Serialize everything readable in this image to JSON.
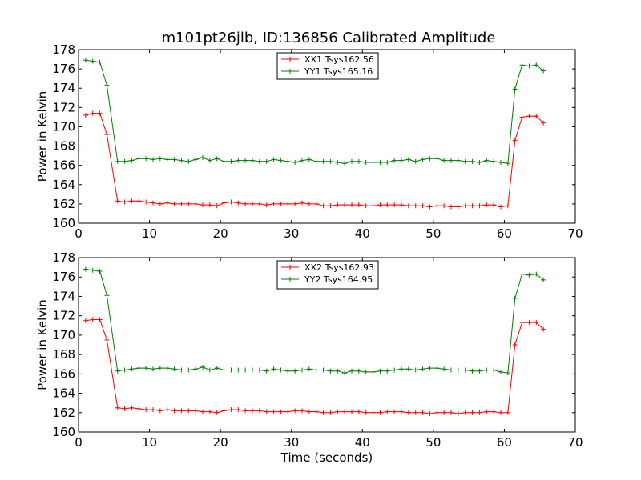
{
  "title": "m101pt26jlb, ID:136856 Calibrated Amplitude",
  "charts": [
    {
      "type": "line",
      "ylabel": "Power in Kelvin",
      "xlabel": "",
      "xlim": [
        0,
        70
      ],
      "ylim": [
        160,
        178
      ],
      "xticks": [
        0,
        10,
        20,
        30,
        40,
        50,
        60,
        70
      ],
      "yticks": [
        160,
        162,
        164,
        166,
        168,
        170,
        172,
        174,
        176,
        178
      ],
      "grid": false,
      "legend": "top-center",
      "x": [
        1.0,
        2.0,
        3.0,
        4.0,
        5.5,
        6.5,
        7.5,
        8.5,
        9.5,
        10.5,
        11.5,
        12.5,
        13.5,
        14.5,
        15.5,
        16.5,
        17.5,
        18.5,
        19.5,
        20.5,
        21.5,
        22.5,
        23.5,
        24.5,
        25.5,
        26.5,
        27.5,
        28.5,
        29.5,
        30.5,
        31.5,
        32.5,
        33.5,
        34.5,
        35.5,
        36.5,
        37.5,
        38.5,
        39.5,
        40.5,
        41.5,
        42.5,
        43.5,
        44.5,
        45.5,
        46.5,
        47.5,
        48.5,
        49.5,
        50.5,
        51.5,
        52.5,
        53.5,
        54.5,
        55.5,
        56.5,
        57.5,
        58.5,
        59.5,
        60.5,
        61.5,
        62.5,
        63.5,
        64.5,
        65.5
      ],
      "series": [
        {
          "name": "XX1 Tsys162.56",
          "color": "#ff0000",
          "values": [
            171.2,
            171.4,
            171.4,
            169.2,
            162.3,
            162.2,
            162.3,
            162.3,
            162.2,
            162.1,
            162.0,
            162.1,
            162.0,
            162.0,
            162.0,
            162.0,
            161.9,
            161.9,
            161.8,
            162.1,
            162.2,
            162.1,
            162.0,
            162.0,
            162.0,
            161.9,
            162.0,
            162.0,
            162.0,
            162.0,
            162.1,
            162.0,
            162.0,
            161.8,
            161.8,
            161.9,
            161.9,
            161.9,
            161.9,
            161.8,
            161.8,
            161.9,
            161.9,
            161.9,
            161.9,
            161.8,
            161.8,
            161.8,
            161.7,
            161.8,
            161.8,
            161.7,
            161.7,
            161.8,
            161.8,
            161.8,
            161.9,
            161.9,
            161.7,
            161.8,
            168.6,
            171.0,
            171.1,
            171.1,
            170.4
          ]
        },
        {
          "name": "YY1 Tsys165.16",
          "color": "#008000",
          "values": [
            176.9,
            176.8,
            176.7,
            174.3,
            166.4,
            166.4,
            166.5,
            166.7,
            166.7,
            166.6,
            166.7,
            166.6,
            166.6,
            166.5,
            166.4,
            166.6,
            166.8,
            166.5,
            166.7,
            166.4,
            166.4,
            166.5,
            166.5,
            166.5,
            166.4,
            166.4,
            166.6,
            166.5,
            166.4,
            166.3,
            166.5,
            166.6,
            166.4,
            166.4,
            166.4,
            166.3,
            166.2,
            166.4,
            166.4,
            166.3,
            166.3,
            166.3,
            166.3,
            166.5,
            166.5,
            166.6,
            166.4,
            166.6,
            166.7,
            166.7,
            166.5,
            166.5,
            166.5,
            166.4,
            166.4,
            166.3,
            166.5,
            166.4,
            166.3,
            166.2,
            173.9,
            176.4,
            176.3,
            176.4,
            175.8
          ]
        }
      ]
    },
    {
      "type": "line",
      "ylabel": "Power in Kelvin",
      "xlabel": "Time (seconds)",
      "xlim": [
        0,
        70
      ],
      "ylim": [
        160,
        178
      ],
      "xticks": [
        0,
        10,
        20,
        30,
        40,
        50,
        60,
        70
      ],
      "yticks": [
        160,
        162,
        164,
        166,
        168,
        170,
        172,
        174,
        176,
        178
      ],
      "grid": false,
      "legend": "top-center",
      "x": [
        1.0,
        2.0,
        3.0,
        4.0,
        5.5,
        6.5,
        7.5,
        8.5,
        9.5,
        10.5,
        11.5,
        12.5,
        13.5,
        14.5,
        15.5,
        16.5,
        17.5,
        18.5,
        19.5,
        20.5,
        21.5,
        22.5,
        23.5,
        24.5,
        25.5,
        26.5,
        27.5,
        28.5,
        29.5,
        30.5,
        31.5,
        32.5,
        33.5,
        34.5,
        35.5,
        36.5,
        37.5,
        38.5,
        39.5,
        40.5,
        41.5,
        42.5,
        43.5,
        44.5,
        45.5,
        46.5,
        47.5,
        48.5,
        49.5,
        50.5,
        51.5,
        52.5,
        53.5,
        54.5,
        55.5,
        56.5,
        57.5,
        58.5,
        59.5,
        60.5,
        61.5,
        62.5,
        63.5,
        64.5,
        65.5
      ],
      "series": [
        {
          "name": "XX2 Tsys162.93",
          "color": "#ff0000",
          "values": [
            171.5,
            171.6,
            171.6,
            169.5,
            162.5,
            162.4,
            162.5,
            162.4,
            162.3,
            162.3,
            162.2,
            162.3,
            162.2,
            162.2,
            162.2,
            162.2,
            162.1,
            162.1,
            162.0,
            162.2,
            162.3,
            162.3,
            162.2,
            162.2,
            162.2,
            162.1,
            162.1,
            162.1,
            162.1,
            162.2,
            162.2,
            162.1,
            162.1,
            162.0,
            162.0,
            162.1,
            162.1,
            162.1,
            162.1,
            162.0,
            162.0,
            162.0,
            162.1,
            162.1,
            162.1,
            162.0,
            162.0,
            162.0,
            161.9,
            162.0,
            162.0,
            162.0,
            161.9,
            162.0,
            162.0,
            162.0,
            162.1,
            162.1,
            162.0,
            162.0,
            169.0,
            171.3,
            171.3,
            171.3,
            170.6
          ]
        },
        {
          "name": "YY2 Tsys164.95",
          "color": "#008000",
          "values": [
            176.8,
            176.7,
            176.6,
            174.1,
            166.3,
            166.4,
            166.5,
            166.6,
            166.6,
            166.5,
            166.6,
            166.6,
            166.5,
            166.4,
            166.4,
            166.5,
            166.7,
            166.4,
            166.6,
            166.4,
            166.4,
            166.4,
            166.4,
            166.4,
            166.4,
            166.3,
            166.5,
            166.4,
            166.3,
            166.3,
            166.4,
            166.5,
            166.4,
            166.4,
            166.3,
            166.3,
            166.1,
            166.3,
            166.3,
            166.2,
            166.2,
            166.3,
            166.3,
            166.4,
            166.5,
            166.5,
            166.4,
            166.5,
            166.6,
            166.6,
            166.5,
            166.4,
            166.4,
            166.4,
            166.3,
            166.3,
            166.4,
            166.4,
            166.2,
            166.1,
            173.8,
            176.3,
            176.2,
            176.3,
            175.7
          ]
        }
      ]
    }
  ]
}
